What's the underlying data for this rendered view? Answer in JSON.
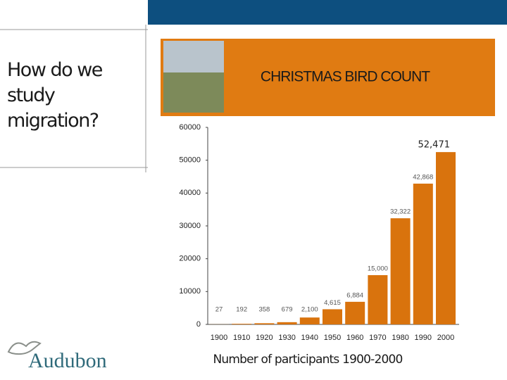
{
  "slide": {
    "title": "How do we study migration?",
    "logo": "Audubon"
  },
  "chart_data": {
    "type": "bar",
    "title": "CHRISTMAS BIRD COUNT",
    "x_label": "Number of participants 1900-2000",
    "categories": [
      "1900",
      "1910",
      "1920",
      "1930",
      "1940",
      "1950",
      "1960",
      "1970",
      "1980",
      "1990",
      "2000"
    ],
    "values": [
      27,
      192,
      358,
      679,
      2100,
      4615,
      6884,
      15000,
      32322,
      42868,
      52471
    ],
    "value_labels": [
      "27",
      "192",
      "358",
      "679",
      "2,100",
      "4,615",
      "6,884",
      "15,000",
      "32,322",
      "42,868",
      "52,471"
    ],
    "color": "#d9730d",
    "ylim": [
      0,
      60000
    ],
    "yticks": [
      0,
      10000,
      20000,
      30000,
      40000,
      50000,
      60000
    ],
    "grid": false
  }
}
